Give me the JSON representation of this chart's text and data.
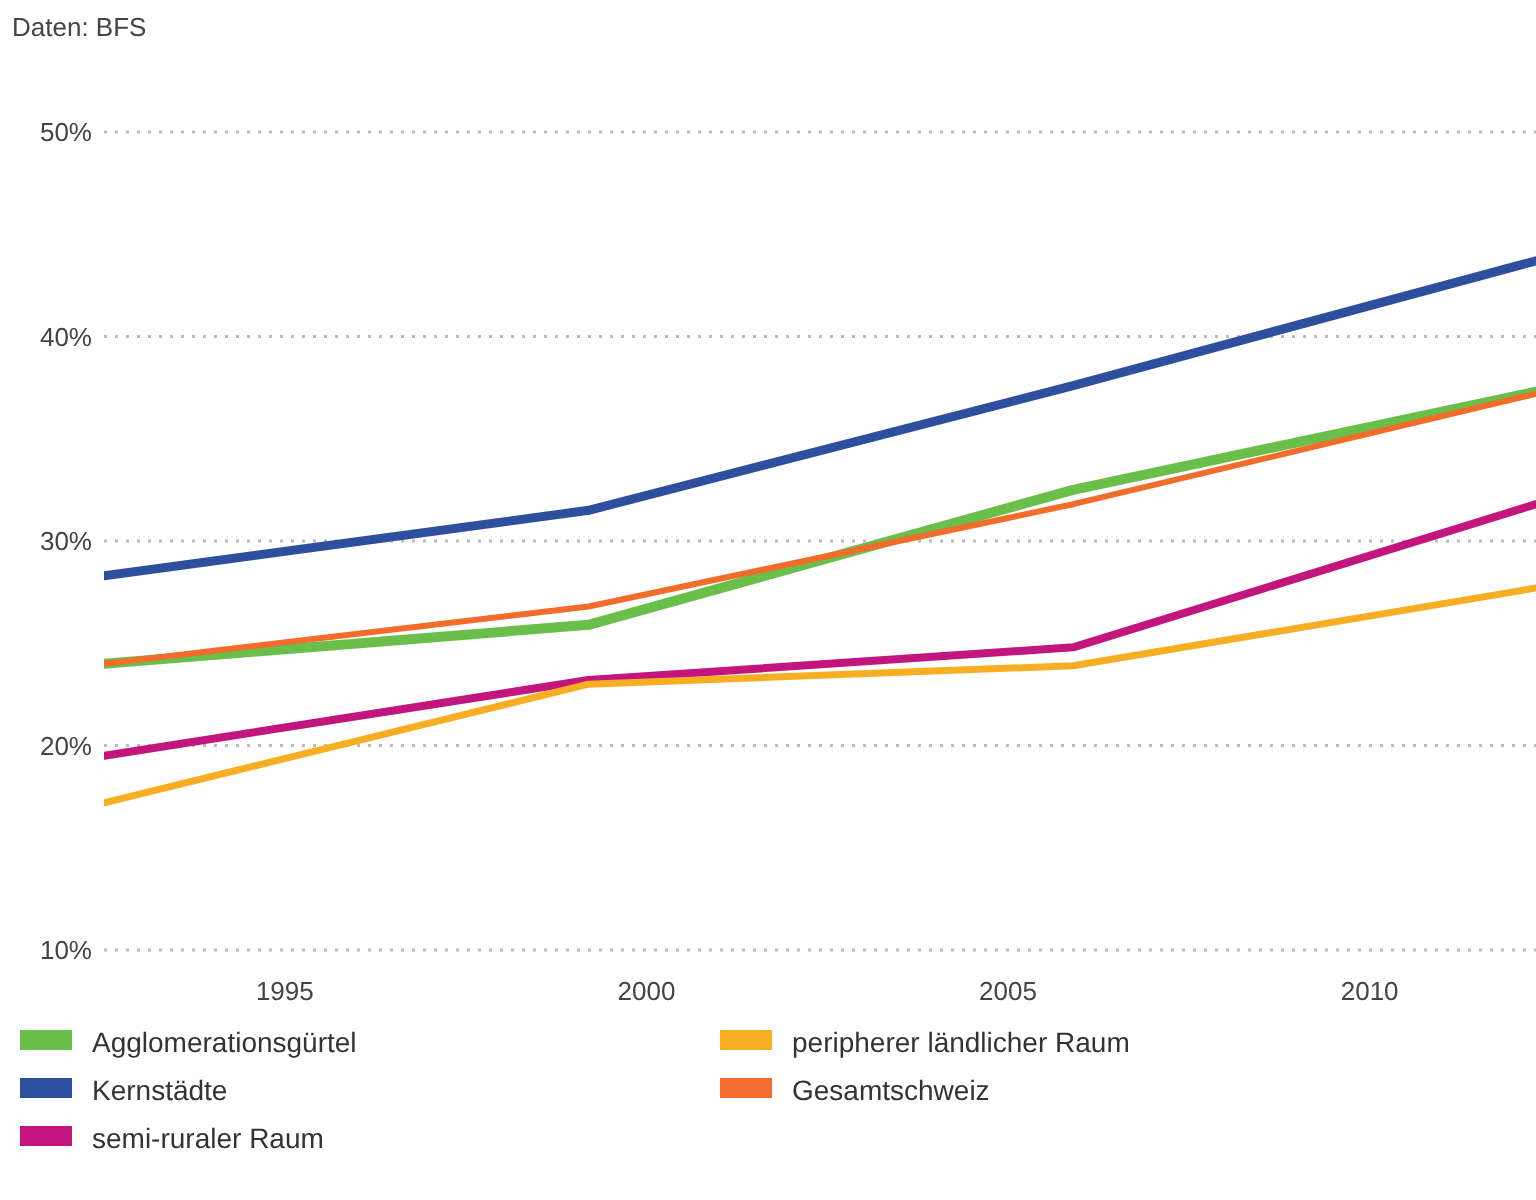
{
  "chart_data": {
    "type": "line",
    "annotations": [
      "Daten: BFS"
    ],
    "x": [
      1992.5,
      1999.2,
      2005.9,
      2012.3
    ],
    "xlim": [
      1992.5,
      2012.3
    ],
    "xticks": [
      1995,
      2000,
      2005,
      2010
    ],
    "ylim": [
      10,
      50
    ],
    "yticks": [
      {
        "value": 10,
        "label": "10%"
      },
      {
        "value": 20,
        "label": "20%"
      },
      {
        "value": 30,
        "label": "30%"
      },
      {
        "value": 40,
        "label": "40%"
      },
      {
        "value": 50,
        "label": "50%"
      }
    ],
    "grid": "y",
    "legend": "bottom",
    "marker": "none",
    "line_style": "solid",
    "series": [
      {
        "name": "Agglomerationsgürtel",
        "color": "#6abf4b",
        "values": [
          24.0,
          25.9,
          32.5,
          37.3
        ]
      },
      {
        "name": "Kernstädte",
        "color": "#2d4f9e",
        "values": [
          28.3,
          31.5,
          37.6,
          43.7
        ]
      },
      {
        "name": "semi-ruraler Raum",
        "color": "#c2157d",
        "values": [
          19.5,
          23.2,
          24.8,
          31.8
        ]
      },
      {
        "name": "peripherer ländlicher Raum",
        "color": "#f7ae22",
        "values": [
          17.2,
          23.0,
          23.9,
          27.7
        ]
      },
      {
        "name": "Gesamtschweiz",
        "color": "#f26d2b",
        "values": [
          24.0,
          26.8,
          31.8,
          37.2
        ]
      }
    ]
  }
}
